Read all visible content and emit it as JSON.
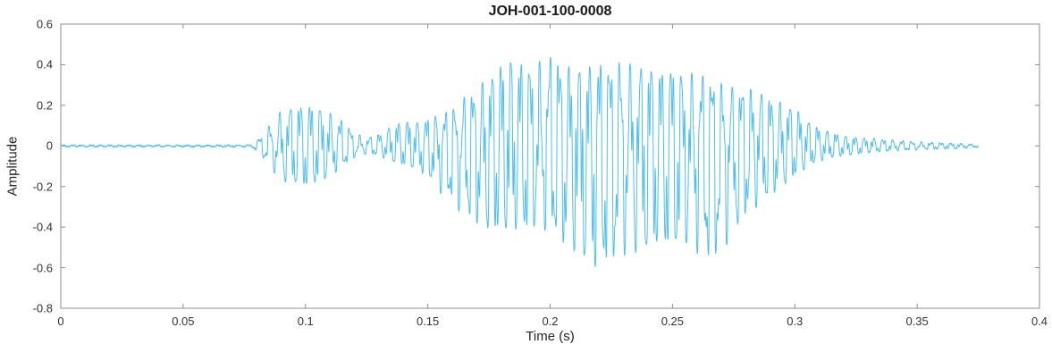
{
  "chart_data": {
    "type": "line",
    "title": "JOH-001-100-0008",
    "xlabel": "Time (s)",
    "ylabel": "Amplitude",
    "xlim": [
      0,
      0.4
    ],
    "ylim": [
      -0.8,
      0.6
    ],
    "xticks": [
      "0",
      "0.05",
      "0.1",
      "0.15",
      "0.2",
      "0.25",
      "0.3",
      "0.35",
      "0.4"
    ],
    "yticks": [
      "-0.8",
      "-0.6",
      "-0.4",
      "-0.2",
      "0",
      "0.2",
      "0.4",
      "0.6"
    ],
    "grid": false,
    "legend_position": "none",
    "line_color": "#4DBEEE",
    "axis_color": "#8c8c8c",
    "text_color": "#262626",
    "signal": {
      "description": "speech-like audio waveform: silence 0-0.08 s; first burst 0.085-0.125 s peaking about +/-0.21; brief lull near 0.125 s; main voiced segment 0.13-0.31 s with max +0.47 near 0.20 s and min -0.65 near 0.22 s; decaying low-amplitude tail ending near 0.375 s",
      "carrier_hz": 250,
      "end_time_s": 0.375,
      "envelope_t": [
        0,
        0.078,
        0.082,
        0.086,
        0.09,
        0.095,
        0.1,
        0.105,
        0.11,
        0.115,
        0.12,
        0.125,
        0.13,
        0.135,
        0.14,
        0.145,
        0.15,
        0.155,
        0.16,
        0.165,
        0.17,
        0.175,
        0.18,
        0.185,
        0.19,
        0.195,
        0.2,
        0.205,
        0.21,
        0.215,
        0.22,
        0.225,
        0.23,
        0.235,
        0.24,
        0.245,
        0.25,
        0.255,
        0.26,
        0.265,
        0.27,
        0.275,
        0.28,
        0.285,
        0.29,
        0.295,
        0.3,
        0.305,
        0.31,
        0.315,
        0.32,
        0.33,
        0.34,
        0.35,
        0.36,
        0.37,
        0.375
      ],
      "envelope_upper": [
        0.004,
        0.004,
        0.05,
        0.12,
        0.18,
        0.2,
        0.21,
        0.2,
        0.17,
        0.13,
        0.07,
        0.04,
        0.06,
        0.1,
        0.13,
        0.12,
        0.14,
        0.16,
        0.19,
        0.25,
        0.3,
        0.36,
        0.42,
        0.46,
        0.41,
        0.43,
        0.47,
        0.43,
        0.39,
        0.41,
        0.43,
        0.41,
        0.44,
        0.4,
        0.42,
        0.38,
        0.41,
        0.36,
        0.38,
        0.35,
        0.32,
        0.3,
        0.3,
        0.28,
        0.25,
        0.22,
        0.2,
        0.13,
        0.09,
        0.07,
        0.05,
        0.04,
        0.03,
        0.02,
        0.015,
        0.01,
        0.005
      ],
      "envelope_lower": [
        -0.004,
        -0.004,
        -0.05,
        -0.12,
        -0.18,
        -0.2,
        -0.21,
        -0.19,
        -0.16,
        -0.11,
        -0.06,
        -0.04,
        -0.05,
        -0.08,
        -0.1,
        -0.12,
        -0.16,
        -0.24,
        -0.3,
        -0.36,
        -0.4,
        -0.44,
        -0.45,
        -0.43,
        -0.45,
        -0.41,
        -0.45,
        -0.5,
        -0.55,
        -0.6,
        -0.65,
        -0.6,
        -0.56,
        -0.55,
        -0.55,
        -0.5,
        -0.54,
        -0.5,
        -0.55,
        -0.6,
        -0.55,
        -0.45,
        -0.36,
        -0.31,
        -0.26,
        -0.21,
        -0.16,
        -0.11,
        -0.08,
        -0.06,
        -0.05,
        -0.035,
        -0.025,
        -0.02,
        -0.015,
        -0.01,
        -0.005
      ]
    }
  }
}
